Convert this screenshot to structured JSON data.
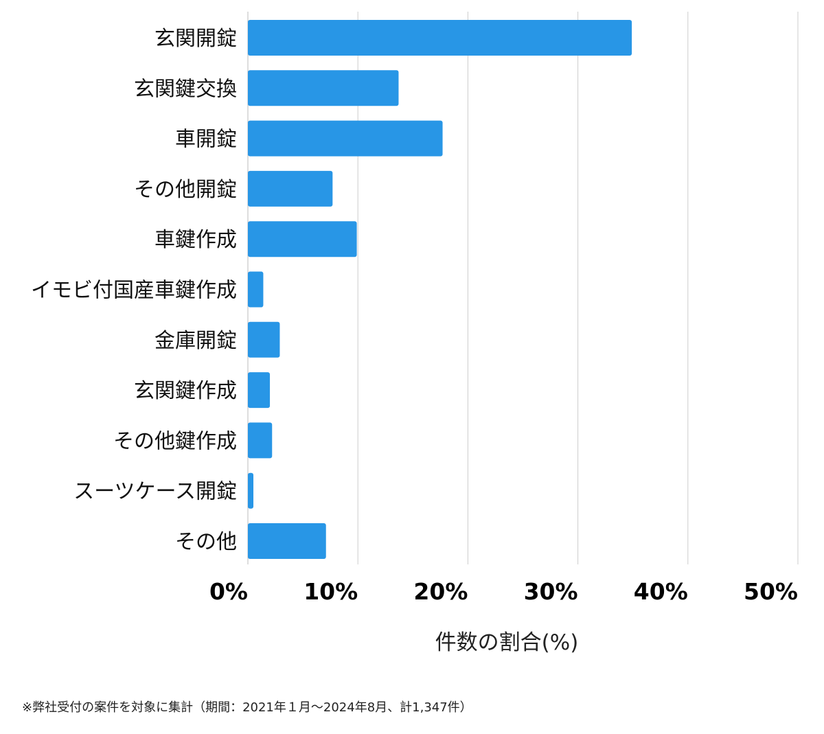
{
  "chart_data": {
    "type": "bar",
    "orientation": "horizontal",
    "categories": [
      "玄関開錠",
      "玄関鍵交換",
      "車開錠",
      "その他開錠",
      "車鍵作成",
      "イモビ付国産車鍵作成",
      "金庫開錠",
      "玄関鍵作成",
      "その他鍵作成",
      "スーツケース開錠",
      "その他"
    ],
    "values": [
      34.9,
      13.7,
      17.7,
      7.7,
      9.9,
      1.4,
      2.9,
      2.0,
      2.2,
      0.5,
      7.1
    ],
    "xlabel": "件数の割合(%)",
    "ylabel": "",
    "xlim": [
      0,
      50
    ],
    "x_ticks": [
      0,
      10,
      20,
      30,
      40,
      50
    ],
    "x_tick_labels": [
      "0%",
      "10%",
      "20%",
      "30%",
      "40%",
      "50%"
    ],
    "grid": true,
    "bar_color": "#2896e6",
    "grid_color": "#cccccc"
  },
  "footnote": "※弊社受付の案件を対象に集計（期間：2021年１月〜2024年8月、計1,347件）"
}
